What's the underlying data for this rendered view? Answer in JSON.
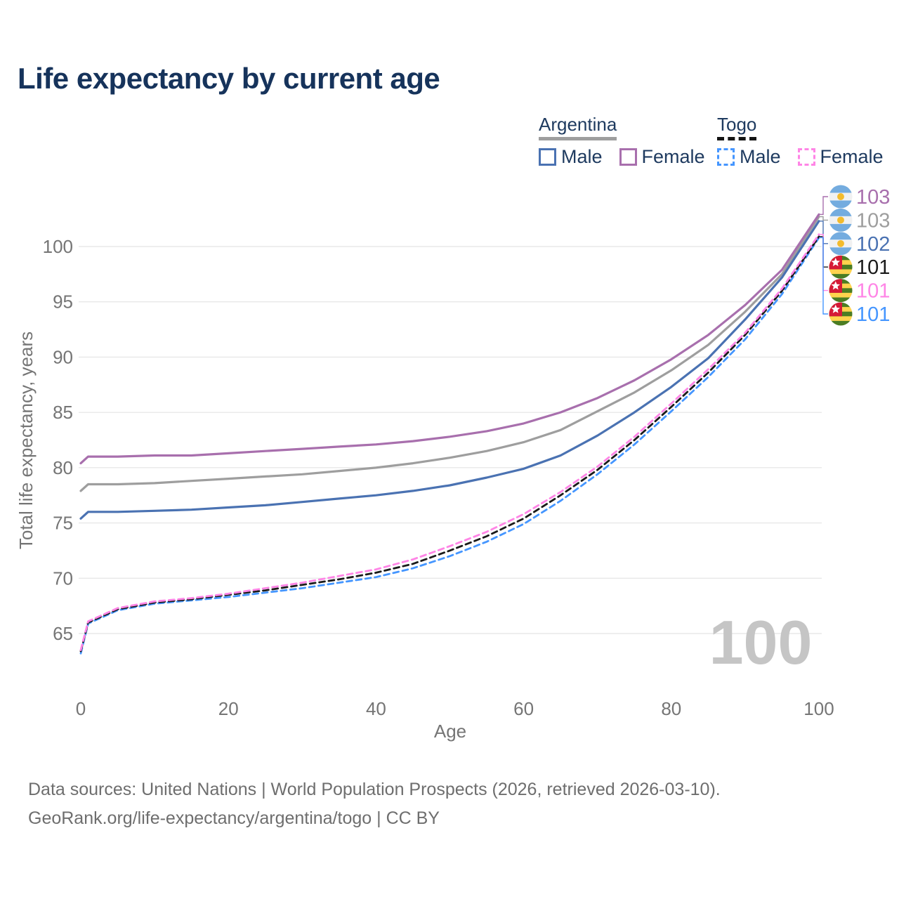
{
  "title": "Life expectancy by current age",
  "legend": {
    "argentina": {
      "label": "Argentina",
      "male_label": "Male",
      "female_label": "Female",
      "male_color": "#4a72b2",
      "female_color": "#a86fad",
      "underline_color": "#9e9e9e",
      "line_style": "solid"
    },
    "togo": {
      "label": "Togo",
      "male_label": "Male",
      "female_label": "Female",
      "male_color": "#4596ff",
      "female_color": "#ff85e6",
      "underline_color": "#141414",
      "line_style": "dashed"
    }
  },
  "watermark": "100",
  "footer": {
    "line1": "Data sources: United Nations | World Population Prospects (2026, retrieved 2026-03-10).",
    "line2": "GeoRank.org/life-expectancy/argentina/togo | CC BY"
  },
  "chart_data": {
    "type": "line",
    "title": "Life expectancy by current age",
    "xlabel": "Age",
    "ylabel": "Total life expectancy, years",
    "x_ticks": [
      0,
      20,
      40,
      60,
      80,
      100
    ],
    "y_ticks": [
      65,
      70,
      75,
      80,
      85,
      90,
      95,
      100
    ],
    "xlim": [
      0,
      100
    ],
    "ylim": [
      62,
      106
    ],
    "grid": "horizontal",
    "legend_position": "top-right",
    "x": [
      0,
      1,
      5,
      10,
      15,
      20,
      25,
      30,
      35,
      40,
      45,
      50,
      55,
      60,
      65,
      70,
      75,
      80,
      85,
      90,
      95,
      100
    ],
    "series": [
      {
        "name": "Argentina Female",
        "country": "Argentina",
        "sex": "Female",
        "style": "solid",
        "color": "#a86fad",
        "end_label": "103",
        "values": [
          80.4,
          81.0,
          81.0,
          81.1,
          81.1,
          81.3,
          81.5,
          81.7,
          81.9,
          82.1,
          82.4,
          82.8,
          83.3,
          84.0,
          85.0,
          86.3,
          87.9,
          89.8,
          92.0,
          94.7,
          97.9,
          102.9
        ]
      },
      {
        "name": "Argentina Both sexes",
        "country": "Argentina",
        "sex": "Both",
        "style": "solid",
        "color": "#9e9e9e",
        "end_label": "103",
        "values": [
          77.9,
          78.5,
          78.5,
          78.6,
          78.8,
          79.0,
          79.2,
          79.4,
          79.7,
          80.0,
          80.4,
          80.9,
          81.5,
          82.3,
          83.4,
          85.1,
          86.8,
          88.8,
          91.1,
          94.1,
          97.5,
          102.7
        ]
      },
      {
        "name": "Argentina Male",
        "country": "Argentina",
        "sex": "Male",
        "style": "solid",
        "color": "#4a72b2",
        "end_label": "102",
        "values": [
          75.4,
          76.0,
          76.0,
          76.1,
          76.2,
          76.4,
          76.6,
          76.9,
          77.2,
          77.5,
          77.9,
          78.4,
          79.1,
          79.9,
          81.1,
          82.9,
          85.0,
          87.3,
          89.9,
          93.4,
          97.2,
          102.3
        ]
      },
      {
        "name": "Togo Both sexes",
        "country": "Togo",
        "sex": "Both",
        "style": "dashed",
        "color": "#1a1a1a",
        "end_label": "101",
        "values": [
          63.4,
          66.0,
          67.2,
          67.8,
          68.1,
          68.5,
          68.9,
          69.4,
          69.9,
          70.5,
          71.3,
          72.5,
          73.8,
          75.4,
          77.5,
          79.8,
          82.5,
          85.5,
          88.6,
          92.0,
          96.0,
          100.9
        ]
      },
      {
        "name": "Togo Female",
        "country": "Togo",
        "sex": "Female",
        "style": "dashed",
        "color": "#ff85e6",
        "end_label": "101",
        "values": [
          63.5,
          66.1,
          67.3,
          67.9,
          68.2,
          68.6,
          69.1,
          69.6,
          70.2,
          70.8,
          71.7,
          72.9,
          74.2,
          75.8,
          77.8,
          80.1,
          82.8,
          85.8,
          88.9,
          92.2,
          96.2,
          101.1
        ]
      },
      {
        "name": "Togo Male",
        "country": "Togo",
        "sex": "Male",
        "style": "dashed",
        "color": "#4596ff",
        "end_label": "101",
        "values": [
          63.2,
          65.9,
          67.1,
          67.7,
          68.0,
          68.3,
          68.7,
          69.1,
          69.6,
          70.1,
          70.9,
          72.0,
          73.3,
          74.9,
          77.0,
          79.4,
          82.1,
          85.1,
          88.2,
          91.6,
          95.7,
          100.8
        ]
      }
    ],
    "end_labels": [
      {
        "text": "103",
        "color": "#a86fad",
        "flag": "argentina",
        "series": "Argentina Female"
      },
      {
        "text": "103",
        "color": "#9e9e9e",
        "flag": "argentina",
        "series": "Argentina Both sexes"
      },
      {
        "text": "102",
        "color": "#4a72b2",
        "flag": "argentina",
        "series": "Argentina Male"
      },
      {
        "text": "101",
        "color": "#1a1a1a",
        "flag": "togo",
        "series": "Togo Both sexes"
      },
      {
        "text": "101",
        "color": "#ff85e6",
        "flag": "togo",
        "series": "Togo Female"
      },
      {
        "text": "101",
        "color": "#4596ff",
        "flag": "togo",
        "series": "Togo Male"
      }
    ]
  }
}
